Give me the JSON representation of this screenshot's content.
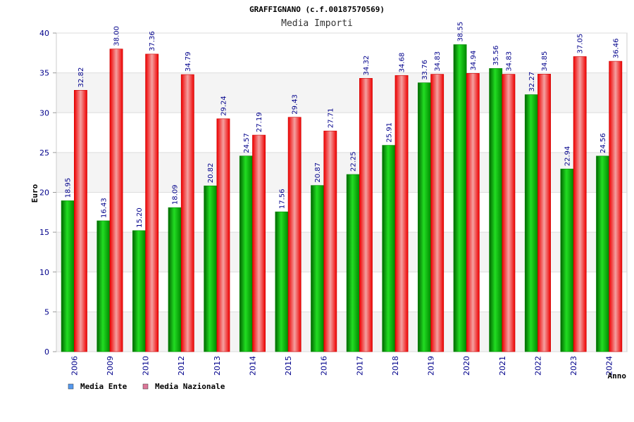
{
  "chart_data": {
    "type": "bar",
    "title": "GRAFFIGNANO (c.f.00187570569)",
    "subtitle": "Media Importi",
    "xlabel": "Anno",
    "ylabel": "Euro",
    "ylim": [
      0,
      40
    ],
    "yticks": [
      0,
      5,
      10,
      15,
      20,
      25,
      30,
      35,
      40
    ],
    "grid": true,
    "legend_position": "bottom-left",
    "categories": [
      "2006",
      "2009",
      "2010",
      "2012",
      "2013",
      "2014",
      "2015",
      "2016",
      "2017",
      "2018",
      "2019",
      "2020",
      "2021",
      "2022",
      "2023",
      "2024"
    ],
    "series": [
      {
        "name": "Media Ente",
        "color": "#00aa00",
        "legend_color": "#5599ee",
        "values": [
          18.95,
          16.43,
          15.2,
          18.09,
          20.82,
          24.57,
          17.56,
          20.87,
          22.25,
          25.91,
          33.76,
          38.55,
          35.56,
          32.27,
          22.94,
          24.56
        ],
        "labels": [
          "18.95",
          "16.43",
          "15.20",
          "18.09",
          "20.82",
          "24.57",
          "17.56",
          "20.87",
          "22.25",
          "25.91",
          "33.76",
          "38.55",
          "35.56",
          "32.27",
          "22.94",
          "24.56"
        ]
      },
      {
        "name": "Media Nazionale",
        "color": "#ee1111",
        "legend_color": "#dd7799",
        "values": [
          32.82,
          38.0,
          37.36,
          34.79,
          29.24,
          27.19,
          29.43,
          27.71,
          34.32,
          34.68,
          34.83,
          34.94,
          34.83,
          34.85,
          37.05,
          36.46
        ],
        "labels": [
          "32.82",
          "38.00",
          "37.36",
          "34.79",
          "29.24",
          "27.19",
          "29.43",
          "27.71",
          "34.32",
          "34.68",
          "34.83",
          "34.94",
          "34.83",
          "34.85",
          "37.05",
          "36.46"
        ]
      }
    ]
  }
}
